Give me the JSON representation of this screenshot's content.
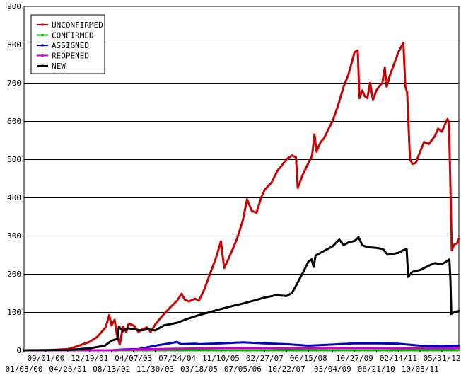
{
  "chart_data": {
    "type": "line",
    "title": "",
    "xlabel": "",
    "ylabel": "",
    "ylim": [
      0,
      900
    ],
    "y_ticks": [
      0,
      100,
      200,
      300,
      400,
      500,
      600,
      700,
      800,
      900
    ],
    "y_tick_labels": [
      "0",
      "100",
      "200",
      "300",
      "400",
      "500",
      "600",
      "700",
      "800",
      "900"
    ],
    "grid": true,
    "legend_position": "top-left",
    "x_range": [
      "01/08/00",
      "12/01/12"
    ],
    "x_ticks_upper": [
      "09/01/00",
      "12/19/01",
      "04/07/03",
      "07/24/04",
      "11/10/05",
      "02/27/07",
      "06/15/08",
      "10/27/09",
      "02/14/11",
      "05/31/12"
    ],
    "x_ticks_lower": [
      "01/08/00",
      "04/26/01",
      "08/13/02",
      "11/30/03",
      "03/18/05",
      "07/05/06",
      "10/22/07",
      "03/04/09",
      "06/21/10",
      "10/08/11"
    ],
    "series": [
      {
        "name": "UNCONFIRMED",
        "color": "#cc0000",
        "points": [
          [
            "01/08/00",
            0
          ],
          [
            "09/01/00",
            0
          ],
          [
            "04/26/01",
            3
          ],
          [
            "08/01/01",
            10
          ],
          [
            "12/19/01",
            22
          ],
          [
            "03/10/02",
            35
          ],
          [
            "06/10/02",
            60
          ],
          [
            "07/20/02",
            92
          ],
          [
            "08/13/02",
            65
          ],
          [
            "09/15/02",
            80
          ],
          [
            "10/10/02",
            40
          ],
          [
            "11/10/02",
            15
          ],
          [
            "12/15/02",
            62
          ],
          [
            "01/20/03",
            48
          ],
          [
            "02/15/03",
            70
          ],
          [
            "04/07/03",
            65
          ],
          [
            "06/01/03",
            48
          ],
          [
            "07/15/03",
            55
          ],
          [
            "09/01/03",
            60
          ],
          [
            "10/10/03",
            48
          ],
          [
            "11/30/03",
            68
          ],
          [
            "02/15/04",
            90
          ],
          [
            "05/01/04",
            110
          ],
          [
            "07/24/04",
            130
          ],
          [
            "09/10/04",
            148
          ],
          [
            "10/15/04",
            132
          ],
          [
            "12/01/04",
            128
          ],
          [
            "02/01/05",
            135
          ],
          [
            "03/18/05",
            130
          ],
          [
            "05/15/05",
            160
          ],
          [
            "07/15/05",
            200
          ],
          [
            "09/15/05",
            240
          ],
          [
            "11/10/05",
            285
          ],
          [
            "12/15/05",
            215
          ],
          [
            "02/01/06",
            240
          ],
          [
            "05/01/06",
            290
          ],
          [
            "07/05/06",
            340
          ],
          [
            "08/20/06",
            395
          ],
          [
            "10/10/06",
            365
          ],
          [
            "12/01/06",
            360
          ],
          [
            "01/20/07",
            400
          ],
          [
            "02/27/07",
            420
          ],
          [
            "05/15/07",
            440
          ],
          [
            "07/15/07",
            470
          ],
          [
            "08/20/07",
            480
          ],
          [
            "10/22/07",
            500
          ],
          [
            "12/20/07",
            510
          ],
          [
            "02/01/08",
            505
          ],
          [
            "02/20/08",
            425
          ],
          [
            "04/15/08",
            460
          ],
          [
            "06/15/08",
            490
          ],
          [
            "07/25/08",
            510
          ],
          [
            "08/20/08",
            565
          ],
          [
            "09/10/08",
            520
          ],
          [
            "10/25/08",
            545
          ],
          [
            "12/01/08",
            555
          ],
          [
            "01/20/09",
            580
          ],
          [
            "03/04/09",
            600
          ],
          [
            "05/01/09",
            640
          ],
          [
            "07/01/09",
            690
          ],
          [
            "08/20/09",
            720
          ],
          [
            "10/27/09",
            780
          ],
          [
            "12/01/09",
            785
          ],
          [
            "12/20/09",
            660
          ],
          [
            "01/20/10",
            680
          ],
          [
            "02/15/10",
            665
          ],
          [
            "03/15/10",
            660
          ],
          [
            "04/15/10",
            700
          ],
          [
            "05/15/10",
            655
          ],
          [
            "06/21/10",
            680
          ],
          [
            "07/20/10",
            690
          ],
          [
            "08/25/10",
            700
          ],
          [
            "09/20/10",
            740
          ],
          [
            "10/10/10",
            690
          ],
          [
            "11/15/10",
            720
          ],
          [
            "02/14/11",
            780
          ],
          [
            "04/10/11",
            805
          ],
          [
            "05/01/11",
            690
          ],
          [
            "05/20/11",
            675
          ],
          [
            "06/20/11",
            500
          ],
          [
            "07/15/11",
            488
          ],
          [
            "08/20/11",
            490
          ],
          [
            "10/08/11",
            520
          ],
          [
            "11/20/11",
            545
          ],
          [
            "01/10/12",
            540
          ],
          [
            "03/15/12",
            560
          ],
          [
            "04/20/12",
            580
          ],
          [
            "05/31/12",
            572
          ],
          [
            "07/01/12",
            590
          ],
          [
            "07/30/12",
            605
          ],
          [
            "08/15/12",
            598
          ],
          [
            "08/30/12",
            440
          ],
          [
            "09/15/12",
            262
          ],
          [
            "10/15/12",
            278
          ],
          [
            "11/10/12",
            280
          ],
          [
            "12/01/12",
            292
          ]
        ]
      },
      {
        "name": "CONFIRMED",
        "color": "#00bb00",
        "points": [
          [
            "01/08/00",
            0
          ],
          [
            "12/01/12",
            0
          ]
        ]
      },
      {
        "name": "ASSIGNED",
        "color": "#0000cc",
        "points": [
          [
            "01/08/00",
            0
          ],
          [
            "08/13/02",
            0
          ],
          [
            "12/15/02",
            2
          ],
          [
            "04/07/03",
            3
          ],
          [
            "06/01/03",
            3
          ],
          [
            "11/30/03",
            12
          ],
          [
            "05/01/04",
            18
          ],
          [
            "07/24/04",
            22
          ],
          [
            "09/01/04",
            16
          ],
          [
            "02/01/05",
            17
          ],
          [
            "03/18/05",
            16
          ],
          [
            "11/10/05",
            18
          ],
          [
            "07/05/06",
            21
          ],
          [
            "02/27/07",
            18
          ],
          [
            "10/22/07",
            16
          ],
          [
            "06/15/08",
            12
          ],
          [
            "03/04/09",
            15
          ],
          [
            "10/27/09",
            18
          ],
          [
            "06/21/10",
            18
          ],
          [
            "02/14/11",
            17
          ],
          [
            "10/08/11",
            12
          ],
          [
            "05/31/12",
            10
          ],
          [
            "12/01/12",
            12
          ]
        ]
      },
      {
        "name": "REOPENED",
        "color": "#cc00cc",
        "points": [
          [
            "01/08/00",
            0
          ],
          [
            "08/13/02",
            0
          ],
          [
            "04/07/03",
            2
          ],
          [
            "11/30/03",
            3
          ],
          [
            "07/24/04",
            4
          ],
          [
            "03/18/05",
            5
          ],
          [
            "11/10/05",
            6
          ],
          [
            "02/27/07",
            6
          ],
          [
            "10/22/07",
            5
          ],
          [
            "03/04/09",
            6
          ],
          [
            "06/21/10",
            6
          ],
          [
            "10/08/11",
            5
          ],
          [
            "05/31/12",
            5
          ],
          [
            "12/01/12",
            6
          ]
        ]
      },
      {
        "name": "NEW",
        "color": "#000000",
        "points": [
          [
            "01/08/00",
            0
          ],
          [
            "04/26/01",
            1
          ],
          [
            "12/19/01",
            5
          ],
          [
            "06/01/02",
            12
          ],
          [
            "08/13/02",
            25
          ],
          [
            "10/15/02",
            30
          ],
          [
            "11/01/02",
            62
          ],
          [
            "12/15/02",
            50
          ],
          [
            "02/01/03",
            58
          ],
          [
            "04/07/03",
            55
          ],
          [
            "07/01/03",
            52
          ],
          [
            "09/15/03",
            55
          ],
          [
            "11/30/03",
            52
          ],
          [
            "03/01/04",
            65
          ],
          [
            "07/24/04",
            72
          ],
          [
            "11/10/04",
            82
          ],
          [
            "03/18/05",
            92
          ],
          [
            "07/15/05",
            100
          ],
          [
            "11/10/05",
            108
          ],
          [
            "03/01/06",
            115
          ],
          [
            "07/05/06",
            122
          ],
          [
            "11/01/06",
            130
          ],
          [
            "02/27/07",
            138
          ],
          [
            "07/01/07",
            144
          ],
          [
            "10/22/07",
            142
          ],
          [
            "12/20/07",
            150
          ],
          [
            "02/15/08",
            175
          ],
          [
            "05/01/08",
            210
          ],
          [
            "06/15/08",
            232
          ],
          [
            "07/20/08",
            238
          ],
          [
            "08/10/08",
            218
          ],
          [
            "09/01/08",
            248
          ],
          [
            "12/01/08",
            260
          ],
          [
            "03/04/09",
            272
          ],
          [
            "05/15/09",
            290
          ],
          [
            "07/01/09",
            275
          ],
          [
            "08/20/09",
            282
          ],
          [
            "10/27/09",
            286
          ],
          [
            "12/10/09",
            296
          ],
          [
            "01/20/10",
            275
          ],
          [
            "03/15/10",
            270
          ],
          [
            "06/21/10",
            268
          ],
          [
            "09/01/10",
            265
          ],
          [
            "10/20/10",
            250
          ],
          [
            "02/14/11",
            255
          ],
          [
            "04/10/11",
            262
          ],
          [
            "05/15/11",
            265
          ],
          [
            "06/01/11",
            192
          ],
          [
            "07/15/11",
            205
          ],
          [
            "10/08/11",
            210
          ],
          [
            "01/15/12",
            222
          ],
          [
            "03/15/12",
            228
          ],
          [
            "05/31/12",
            225
          ],
          [
            "07/15/12",
            232
          ],
          [
            "08/20/12",
            238
          ],
          [
            "09/01/12",
            180
          ],
          [
            "09/10/12",
            95
          ],
          [
            "10/15/12",
            100
          ],
          [
            "12/01/12",
            103
          ]
        ]
      }
    ]
  }
}
